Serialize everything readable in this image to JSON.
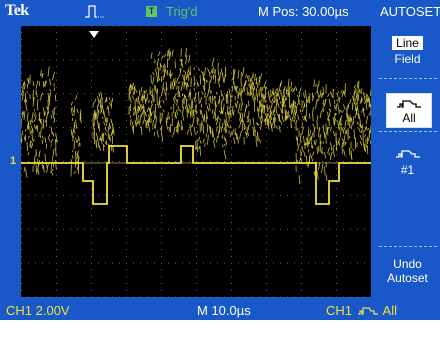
{
  "header": {
    "brand": "Tek",
    "trigger_badge": "T",
    "trigger_status": "Trig'd",
    "main_position": "M Pos: 30.00µs",
    "menu_title": "AUTOSET"
  },
  "footer": {
    "ch1_scale": "CH1  2.00V",
    "timebase": "M  10.0µs",
    "trigger_source_ch": "CH1",
    "trigger_source_mode": "All"
  },
  "markers": {
    "ch1_ground": "1"
  },
  "side_menu": {
    "items": [
      {
        "line1": "Line",
        "line2": "Field"
      },
      {
        "line1": "",
        "line2": "All",
        "icon": "video-waveform-icon"
      },
      {
        "line1": "",
        "line2": "#1",
        "icon": "video-waveform-icon"
      },
      {
        "line1": "Undo",
        "line2": "Autoset"
      }
    ]
  },
  "colors": {
    "frame": "#1858c8",
    "trace": "#f0e040",
    "trigger_status": "#5ec85e",
    "graticule": "#000000"
  }
}
